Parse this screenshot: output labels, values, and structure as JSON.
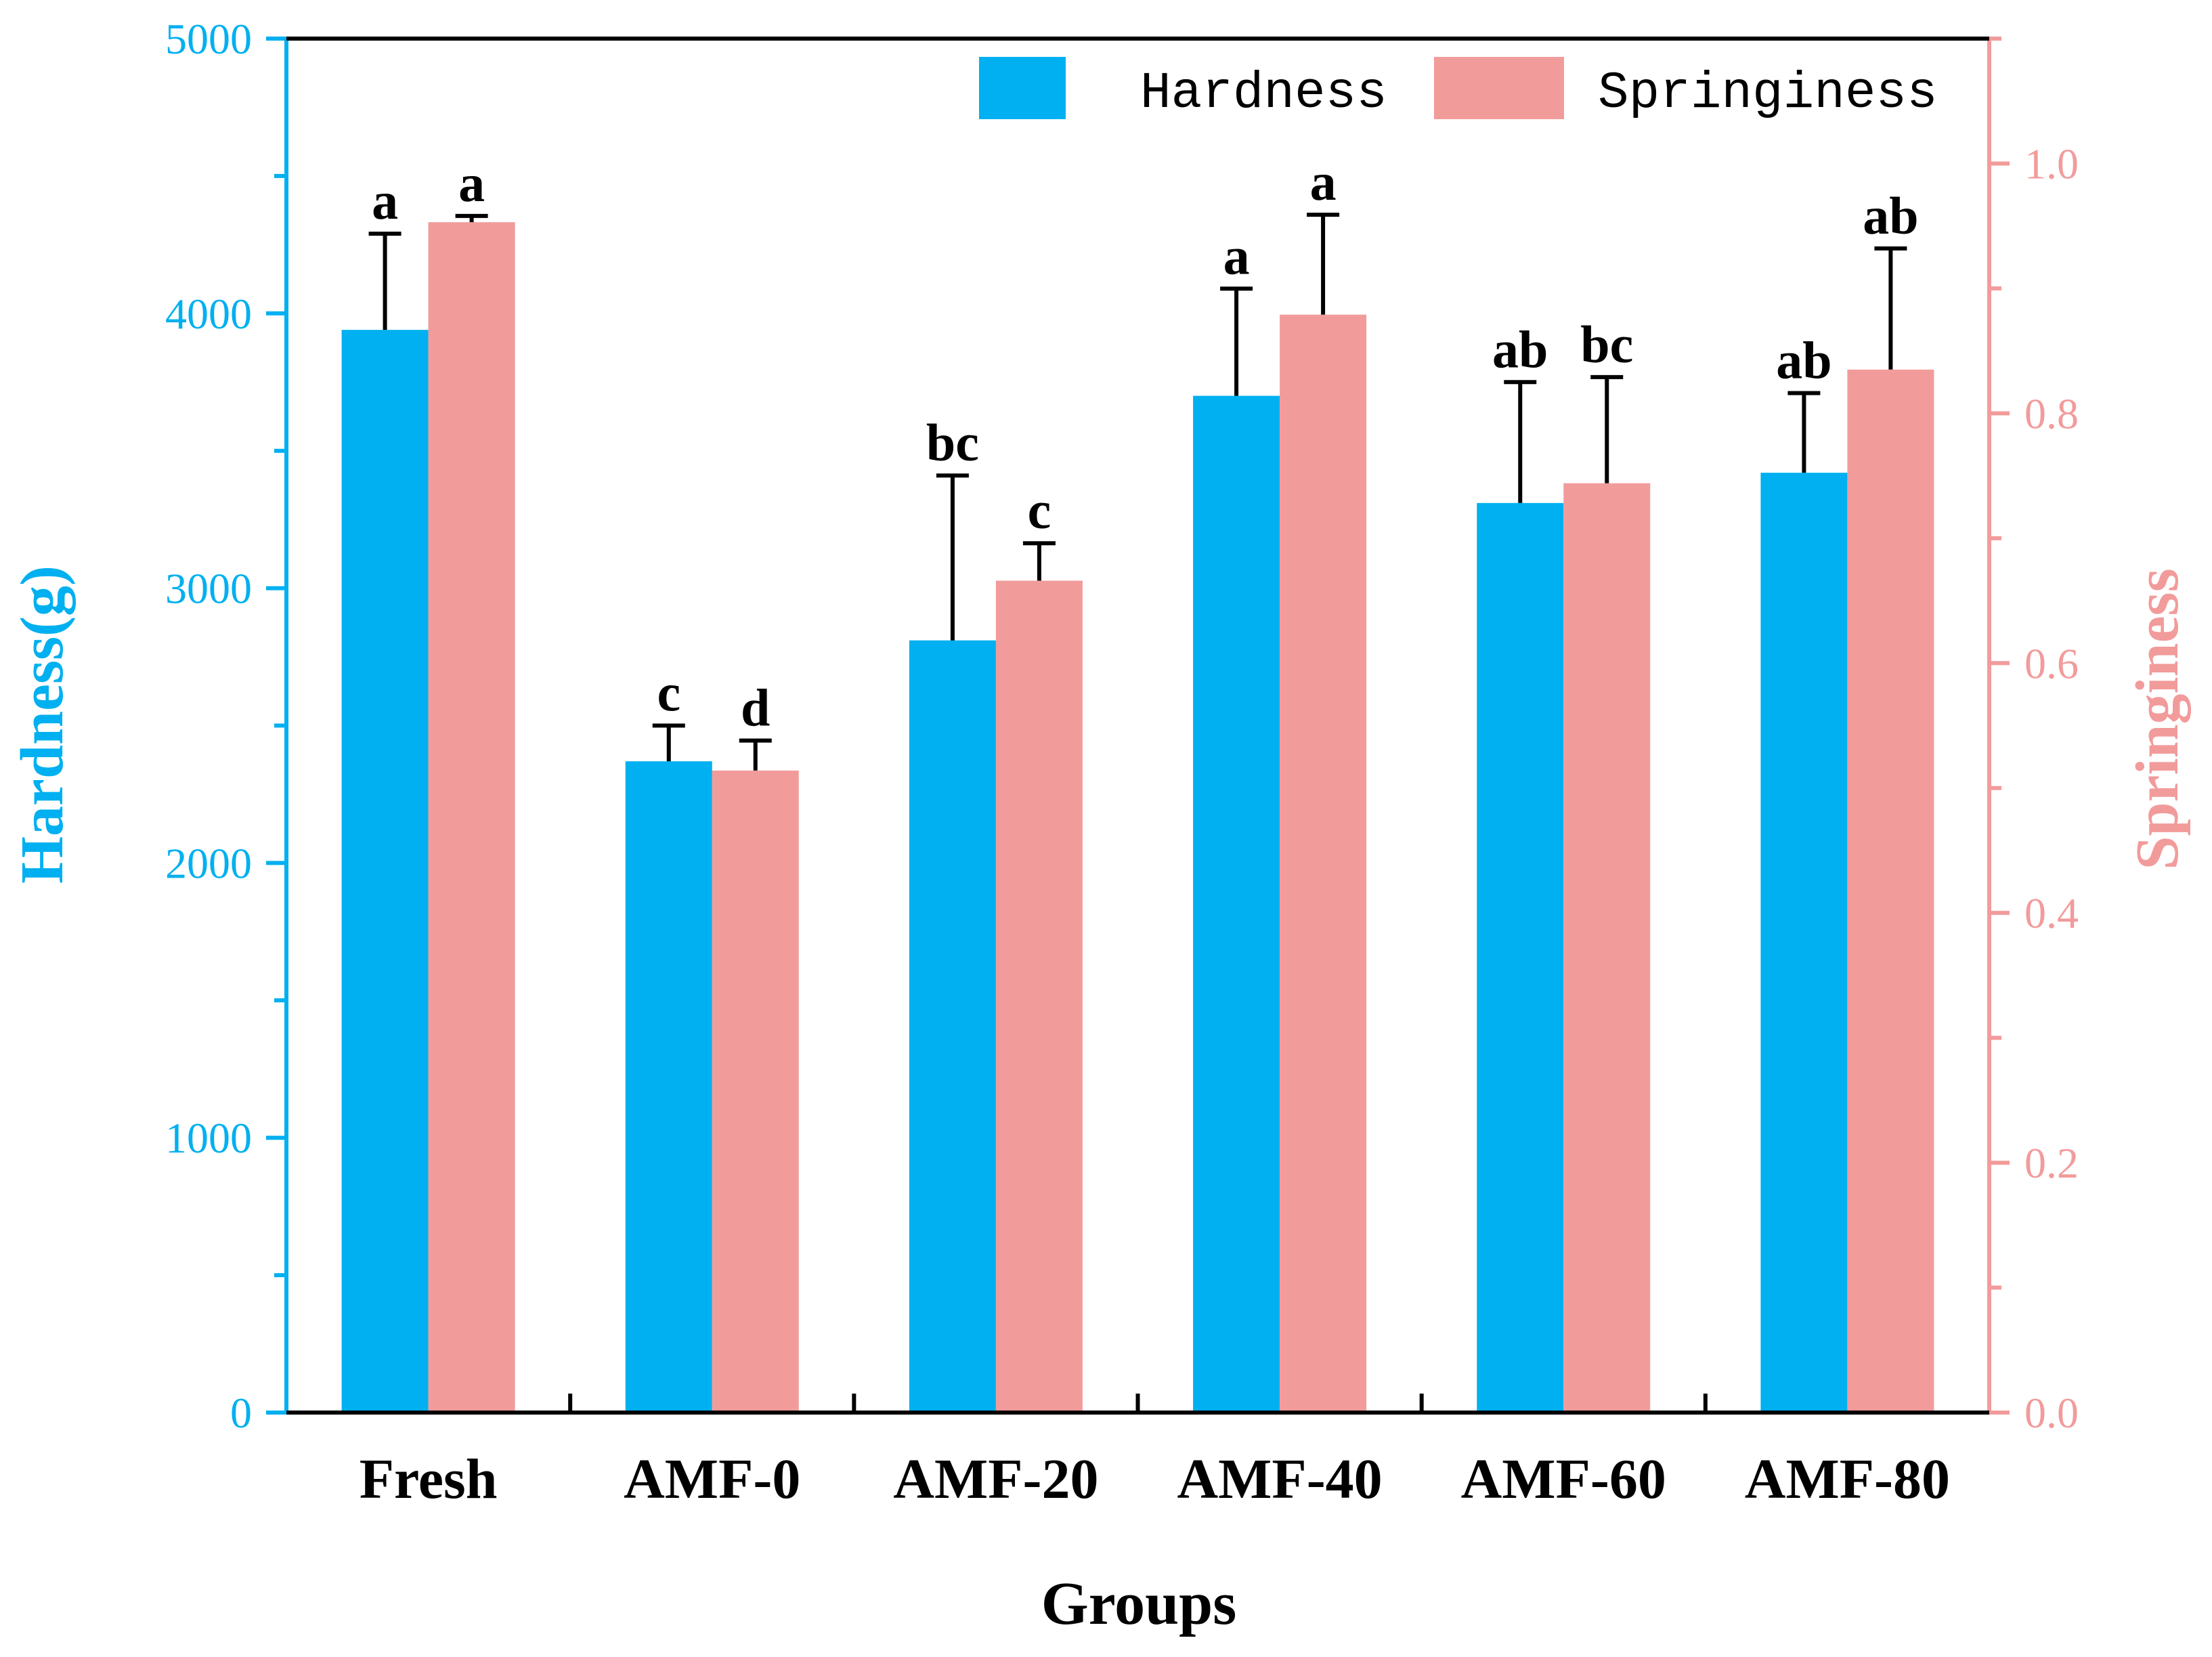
{
  "chart_data": {
    "type": "bar",
    "categories": [
      "Fresh",
      "AMF-0",
      "AMF-20",
      "AMF-40",
      "AMF-60",
      "AMF-80"
    ],
    "xlabel": "Groups",
    "ylabel_left": "Hardness(g)",
    "ylabel_right": "Springiness",
    "ylim_left": [
      0,
      5000
    ],
    "ylim_right": [
      0,
      1.1
    ],
    "yticks_left": [
      "0",
      "1000",
      "2000",
      "3000",
      "4000",
      "5000"
    ],
    "yticks_right": [
      "0.0",
      "0.2",
      "0.4",
      "0.6",
      "0.8",
      "1.0"
    ],
    "colors": {
      "hardness": "#00b0f0",
      "springiness": "#f29b9b",
      "left_axis": "#00b0f0",
      "right_axis": "#f29b9b",
      "error_hardness": "#000000",
      "error_springiness": "#000000"
    },
    "legend": {
      "position": "top-right",
      "entries": [
        "Hardness",
        "Springiness"
      ]
    },
    "series": [
      {
        "name": "Hardness",
        "axis": "left",
        "values": [
          3940,
          2370,
          2810,
          3700,
          3310,
          3420
        ],
        "errors": [
          350,
          130,
          600,
          390,
          440,
          290
        ],
        "labels": [
          "a",
          "c",
          "bc",
          "a",
          "ab",
          "ab"
        ]
      },
      {
        "name": "Springiness",
        "axis": "right",
        "values": [
          0.953,
          0.514,
          0.666,
          0.879,
          0.744,
          0.835
        ],
        "errors": [
          0.005,
          0.024,
          0.03,
          0.08,
          0.085,
          0.097
        ],
        "labels": [
          "a",
          "d",
          "c",
          "a",
          "bc",
          "ab"
        ]
      }
    ]
  }
}
